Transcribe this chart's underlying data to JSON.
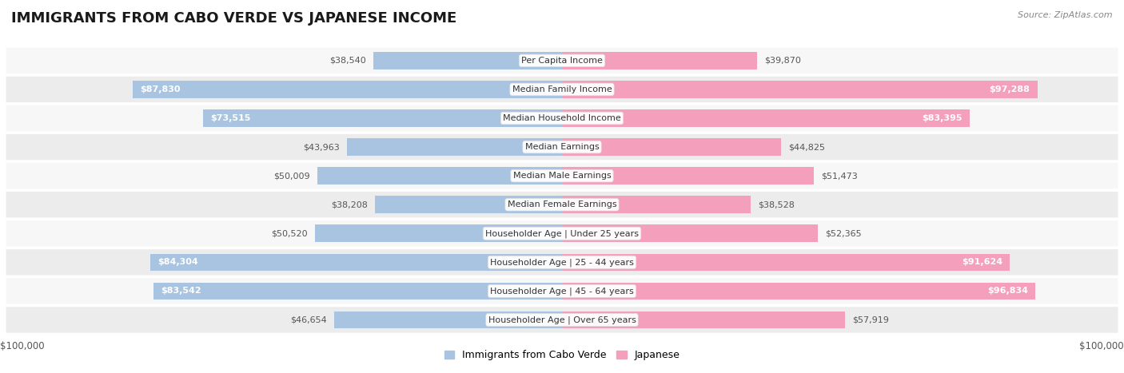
{
  "title": "IMMIGRANTS FROM CABO VERDE VS JAPANESE INCOME",
  "source": "Source: ZipAtlas.com",
  "categories": [
    "Per Capita Income",
    "Median Family Income",
    "Median Household Income",
    "Median Earnings",
    "Median Male Earnings",
    "Median Female Earnings",
    "Householder Age | Under 25 years",
    "Householder Age | 25 - 44 years",
    "Householder Age | 45 - 64 years",
    "Householder Age | Over 65 years"
  ],
  "cabo_verde_values": [
    38540,
    87830,
    73515,
    43963,
    50009,
    38208,
    50520,
    84304,
    83542,
    46654
  ],
  "japanese_values": [
    39870,
    97288,
    83395,
    44825,
    51473,
    38528,
    52365,
    91624,
    96834,
    57919
  ],
  "cabo_verde_labels": [
    "$38,540",
    "$87,830",
    "$73,515",
    "$43,963",
    "$50,009",
    "$38,208",
    "$50,520",
    "$84,304",
    "$83,542",
    "$46,654"
  ],
  "japanese_labels": [
    "$39,870",
    "$97,288",
    "$83,395",
    "$44,825",
    "$51,473",
    "$38,528",
    "$52,365",
    "$91,624",
    "$96,834",
    "$57,919"
  ],
  "max_value": 100000,
  "color_cabo_verde": "#a8c4e0",
  "color_japanese": "#f4a0bc",
  "row_bg_light": "#f7f7f7",
  "row_bg_dark": "#ececec",
  "label_inside_cabo": [
    false,
    true,
    true,
    false,
    false,
    false,
    false,
    true,
    true,
    false
  ],
  "label_inside_japanese": [
    false,
    true,
    true,
    false,
    false,
    false,
    false,
    true,
    true,
    false
  ],
  "xlabel_left": "$100,000",
  "xlabel_right": "$100,000",
  "legend_label_1": "Immigrants from Cabo Verde",
  "legend_label_2": "Japanese",
  "title_fontsize": 13,
  "bar_height": 0.6
}
